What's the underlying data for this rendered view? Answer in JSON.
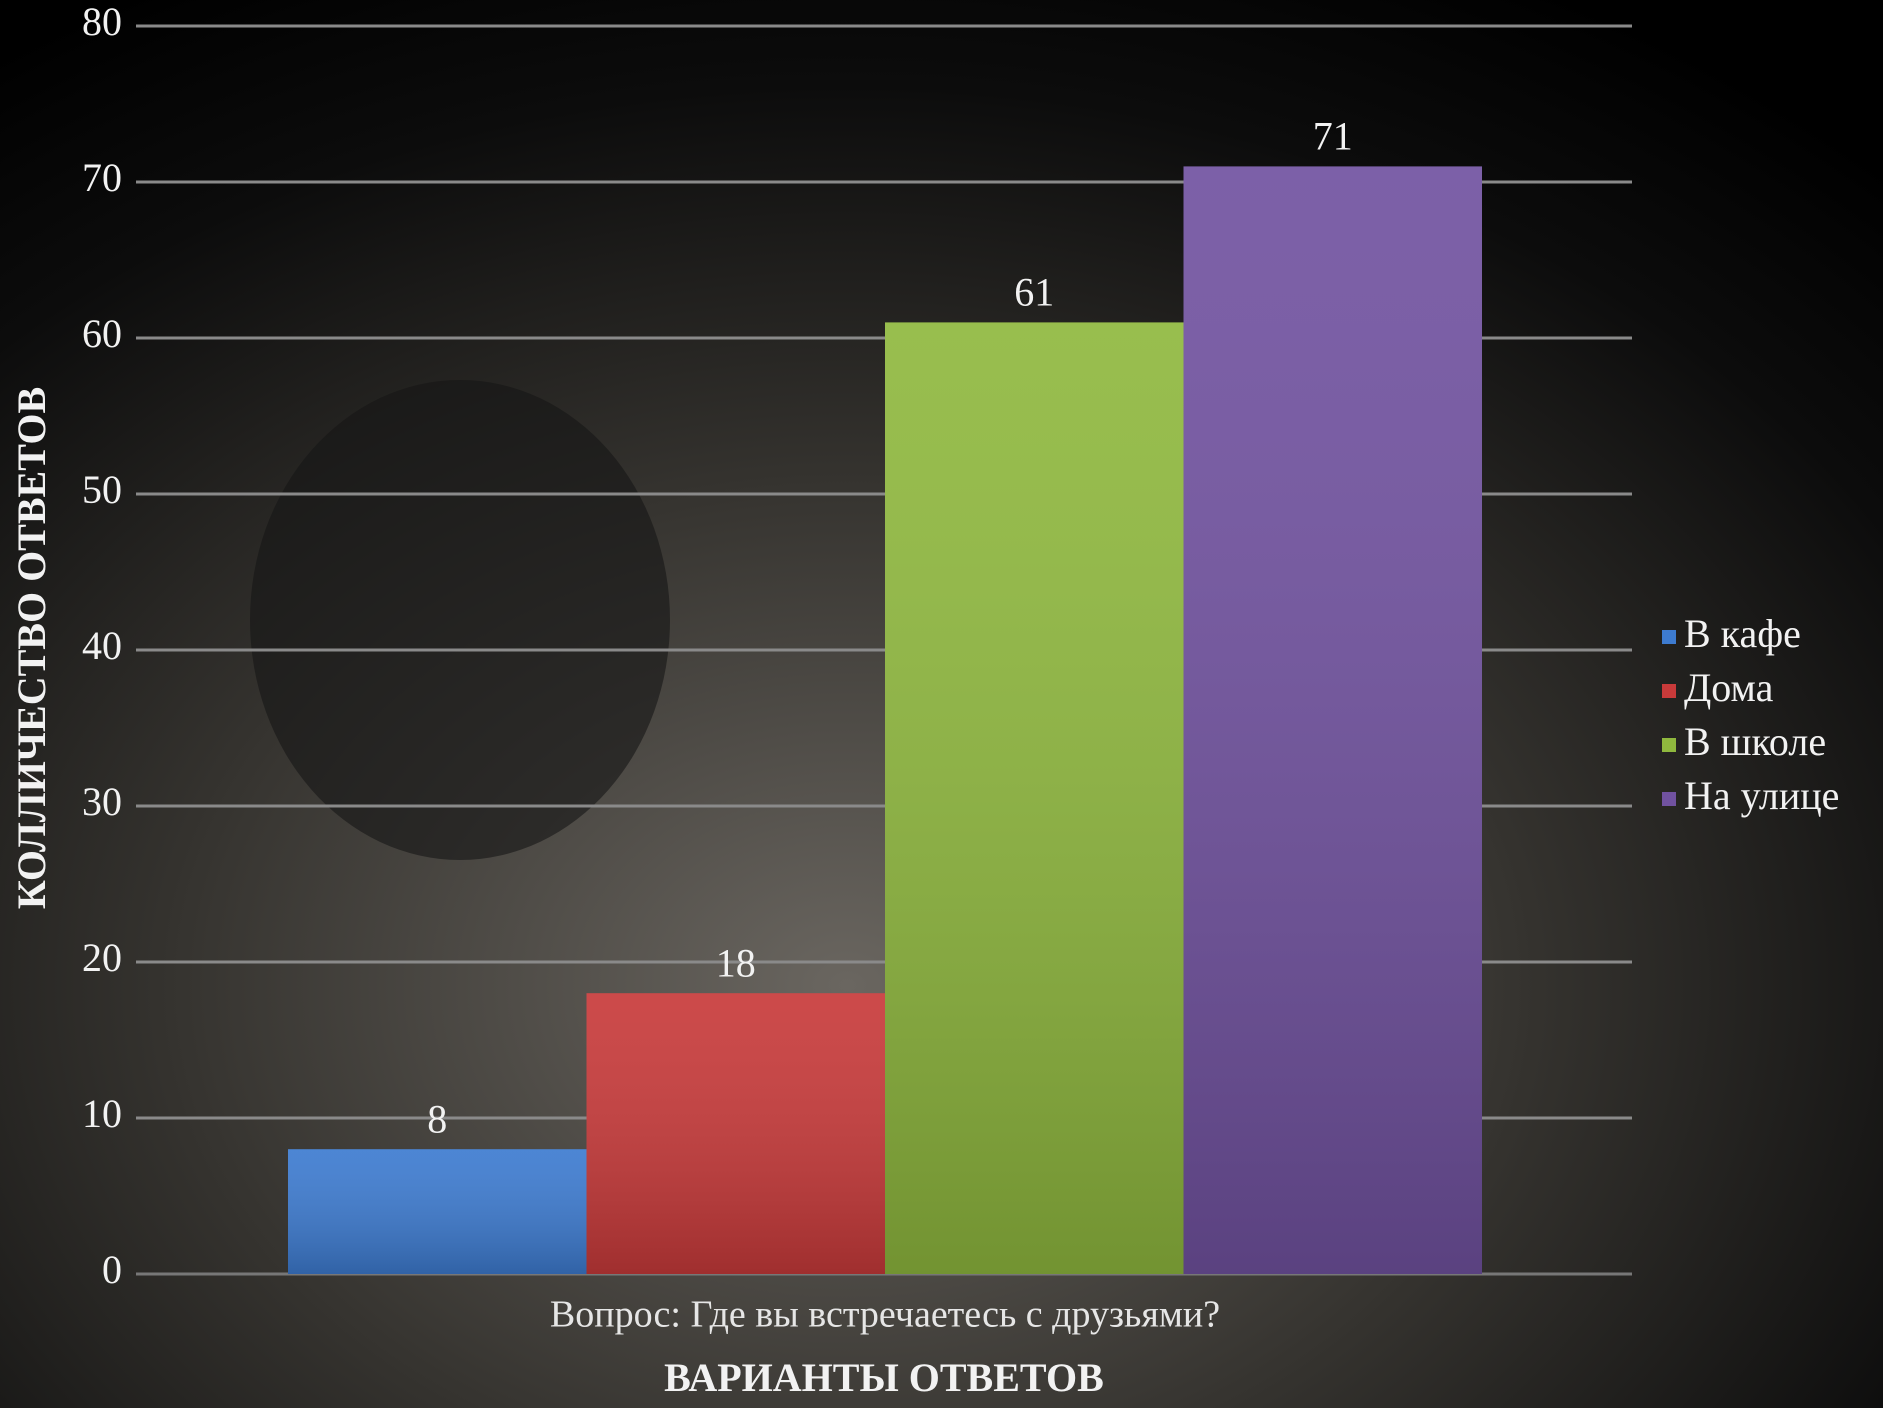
{
  "chart_data": {
    "type": "bar",
    "x_label": "ВАРИАНТЫ ОТВЕТОВ",
    "y_label": "КОЛЛИЧЕСТВО ОТВЕТОВ",
    "categories": [
      "Вопрос: Где вы встречаетесь с друзьями?"
    ],
    "series": [
      {
        "name": "В кафе",
        "color": "#3d7bd0",
        "values": [
          8
        ]
      },
      {
        "name": "Дома",
        "color": "#c83a3a",
        "values": [
          18
        ]
      },
      {
        "name": "В школе",
        "color": "#8fb83e",
        "values": [
          61
        ]
      },
      {
        "name": "На улице",
        "color": "#7152a0",
        "values": [
          71
        ]
      }
    ],
    "ylim": [
      0,
      80
    ],
    "yticks": [
      0,
      10,
      20,
      30,
      40,
      50,
      60,
      70,
      80
    ],
    "grid": true,
    "legend": "right"
  }
}
